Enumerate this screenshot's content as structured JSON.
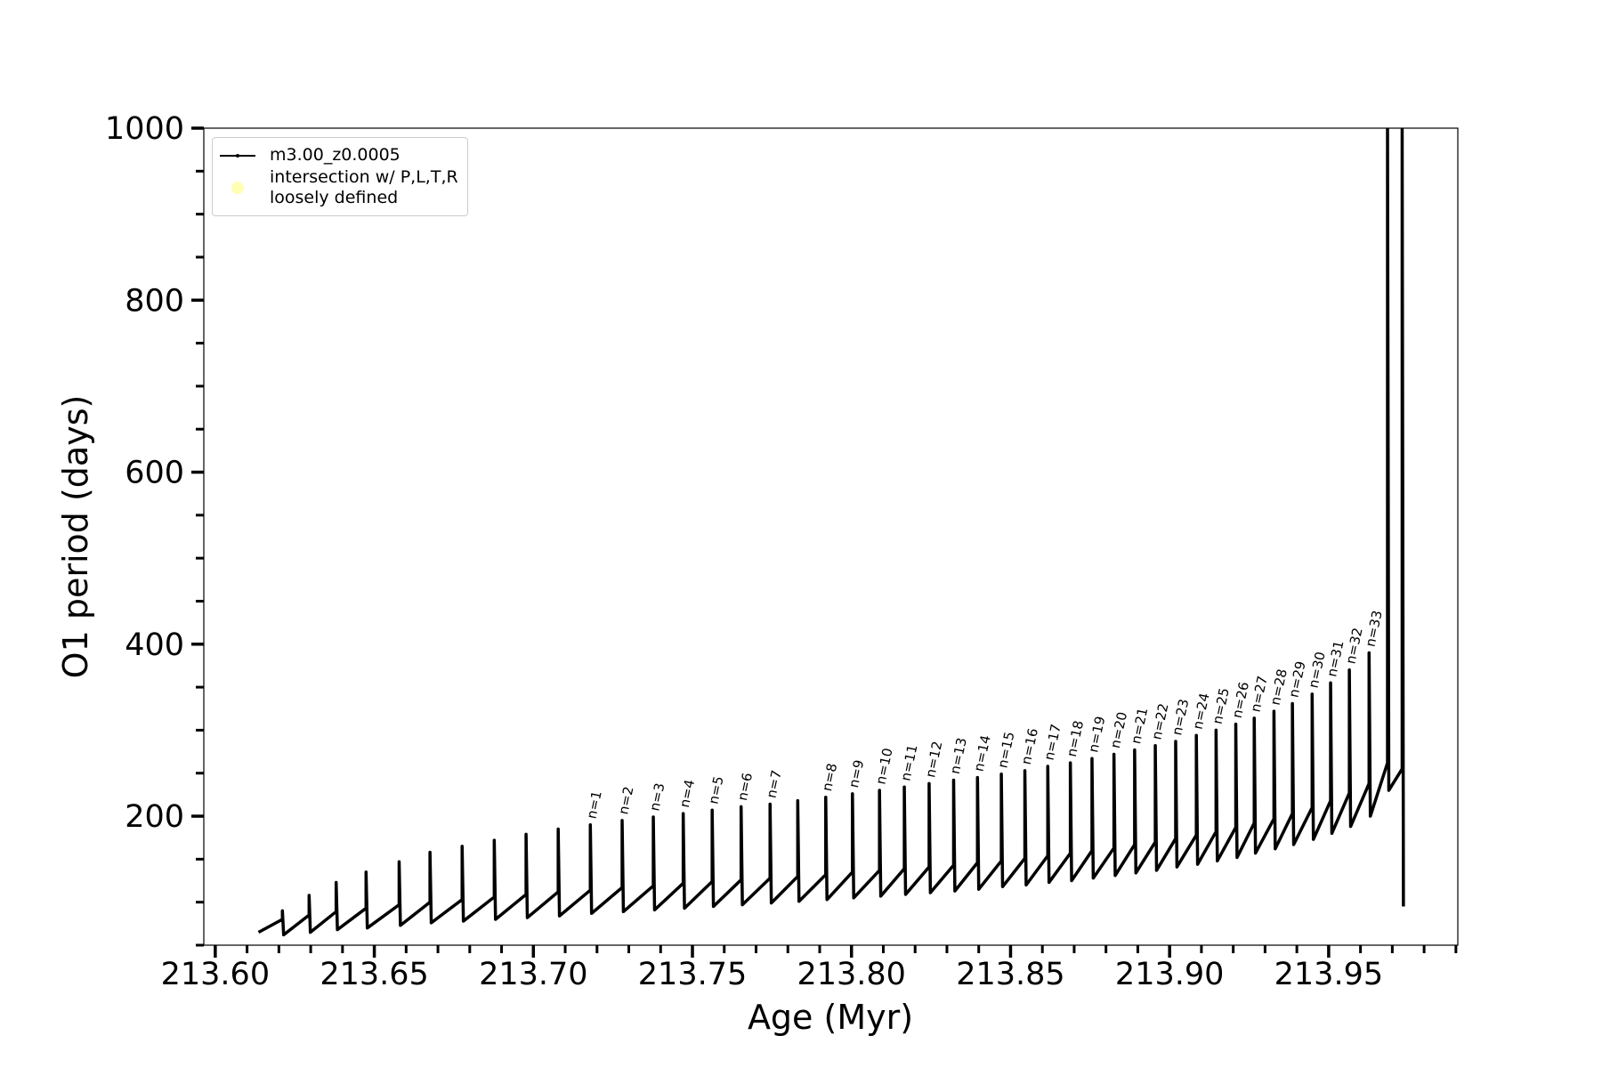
{
  "chart_data": {
    "type": "line",
    "xlabel": "Age (Myr)",
    "ylabel": "O1 period (days)",
    "xlim": [
      213.5964,
      213.9906
    ],
    "ylim": [
      50,
      1000
    ],
    "xticks": [
      {
        "value": 213.6,
        "label": "213.60"
      },
      {
        "value": 213.65,
        "label": "213.65"
      },
      {
        "value": 213.7,
        "label": "213.70"
      },
      {
        "value": 213.75,
        "label": "213.75"
      },
      {
        "value": 213.8,
        "label": "213.80"
      },
      {
        "value": 213.85,
        "label": "213.85"
      },
      {
        "value": 213.9,
        "label": "213.90"
      },
      {
        "value": 213.95,
        "label": "213.95"
      }
    ],
    "xminorticks": [
      213.61,
      213.62,
      213.63,
      213.64,
      213.66,
      213.67,
      213.68,
      213.69,
      213.71,
      213.72,
      213.73,
      213.74,
      213.76,
      213.77,
      213.78,
      213.79,
      213.81,
      213.82,
      213.83,
      213.84,
      213.86,
      213.87,
      213.88,
      213.89,
      213.91,
      213.92,
      213.93,
      213.94,
      213.96,
      213.97,
      213.98,
      213.99
    ],
    "yticks": [
      200,
      400,
      600,
      800,
      1000
    ],
    "yminorticks": [
      50,
      100,
      150,
      250,
      300,
      350,
      450,
      500,
      550,
      650,
      700,
      750,
      850,
      900,
      950
    ],
    "legend": "upper left",
    "series": [
      {
        "name": "m3.00_z0.0005",
        "color": "#000000",
        "x": [
          213.6136,
          213.6211,
          213.6211,
          213.6215,
          213.6295,
          213.6295,
          213.6299,
          213.638,
          213.638,
          213.6384,
          213.6474,
          213.6474,
          213.6478,
          213.6578,
          213.6578,
          213.6582,
          213.6675,
          213.6675,
          213.6679,
          213.6776,
          213.6776,
          213.678,
          213.6877,
          213.6877,
          213.6881,
          213.6977,
          213.6977,
          213.6981,
          213.7078,
          213.7078,
          213.7082,
          213.7179,
          213.7179,
          213.7183,
          213.7279,
          213.7279,
          213.7283,
          213.7377,
          213.7377,
          213.7381,
          213.7471,
          213.7471,
          213.7475,
          213.7562,
          213.7562,
          213.7566,
          213.7653,
          213.7653,
          213.7657,
          213.7744,
          213.7744,
          213.7748,
          213.7831,
          213.7831,
          213.7835,
          213.7919,
          213.7919,
          213.7923,
          213.8003,
          213.8003,
          213.8007,
          213.8088,
          213.8088,
          213.8092,
          213.8166,
          213.8166,
          213.817,
          213.8244,
          213.8244,
          213.8248,
          213.8321,
          213.8321,
          213.8325,
          213.8396,
          213.8396,
          213.84,
          213.8471,
          213.8471,
          213.8475,
          213.8545,
          213.8545,
          213.8549,
          213.8617,
          213.8617,
          213.8621,
          213.8688,
          213.8688,
          213.8692,
          213.8756,
          213.8756,
          213.876,
          213.8825,
          213.8825,
          213.8829,
          213.889,
          213.889,
          213.8894,
          213.8955,
          213.8955,
          213.8959,
          213.9019,
          213.9019,
          213.9023,
          213.9084,
          213.9084,
          213.9088,
          213.9146,
          213.9146,
          213.915,
          213.9208,
          213.9208,
          213.9212,
          213.9266,
          213.9266,
          213.927,
          213.9328,
          213.9328,
          213.9332,
          213.9386,
          213.9386,
          213.939,
          213.9448,
          213.9448,
          213.9452,
          213.9506,
          213.9506,
          213.951,
          213.9565,
          213.9565,
          213.9569,
          213.9627,
          213.9627,
          213.9631,
          213.9685,
          213.9685,
          213.9689,
          213.9731,
          213.9731,
          213.9735
        ],
        "values": [
          65,
          80,
          90,
          62,
          85,
          108,
          65,
          89,
          123,
          68,
          93,
          135,
          70,
          97,
          147,
          73,
          100,
          158,
          76,
          103,
          165,
          78,
          106,
          172,
          80,
          109,
          179,
          82,
          112,
          185,
          84,
          114,
          190,
          87,
          117,
          195,
          89,
          119,
          199,
          91,
          122,
          203,
          93,
          124,
          207,
          95,
          126,
          211,
          97,
          128,
          214,
          99,
          130,
          218,
          101,
          132,
          222,
          103,
          135,
          226,
          105,
          137,
          230,
          107,
          139,
          234,
          109,
          141,
          238,
          111,
          143,
          242,
          113,
          146,
          245,
          115,
          148,
          249,
          118,
          151,
          253,
          120,
          154,
          258,
          123,
          157,
          262,
          125,
          160,
          267,
          128,
          163,
          272,
          131,
          167,
          277,
          134,
          170,
          282,
          137,
          174,
          287,
          141,
          178,
          294,
          144,
          182,
          300,
          148,
          187,
          307,
          152,
          192,
          314,
          157,
          197,
          322,
          162,
          203,
          331,
          167,
          210,
          342,
          173,
          218,
          355,
          180,
          227,
          370,
          188,
          238,
          390,
          200,
          262,
          1000,
          230,
          255,
          1000,
          95
        ]
      },
      {
        "name": "intersection w/ P,L,T,R\nloosely defined",
        "color": "#ffffb3",
        "x": [],
        "values": []
      }
    ],
    "annotations": [
      {
        "text": "n=1",
        "x": 213.7179,
        "y": 190
      },
      {
        "text": "n=2",
        "x": 213.7279,
        "y": 195
      },
      {
        "text": "n=3",
        "x": 213.7377,
        "y": 199
      },
      {
        "text": "n=4",
        "x": 213.7471,
        "y": 203
      },
      {
        "text": "n=5",
        "x": 213.7562,
        "y": 207
      },
      {
        "text": "n=6",
        "x": 213.7653,
        "y": 211
      },
      {
        "text": "n=7",
        "x": 213.7744,
        "y": 214
      },
      {
        "text": "n=8",
        "x": 213.7919,
        "y": 222
      },
      {
        "text": "n=9",
        "x": 213.8003,
        "y": 226
      },
      {
        "text": "n=10",
        "x": 213.8088,
        "y": 230
      },
      {
        "text": "n=11",
        "x": 213.8166,
        "y": 234
      },
      {
        "text": "n=12",
        "x": 213.8244,
        "y": 238
      },
      {
        "text": "n=13",
        "x": 213.8321,
        "y": 242
      },
      {
        "text": "n=14",
        "x": 213.8396,
        "y": 245
      },
      {
        "text": "n=15",
        "x": 213.8471,
        "y": 249
      },
      {
        "text": "n=16",
        "x": 213.8545,
        "y": 253
      },
      {
        "text": "n=17",
        "x": 213.8617,
        "y": 258
      },
      {
        "text": "n=18",
        "x": 213.8688,
        "y": 262
      },
      {
        "text": "n=19",
        "x": 213.8756,
        "y": 267
      },
      {
        "text": "n=20",
        "x": 213.8825,
        "y": 272
      },
      {
        "text": "n=21",
        "x": 213.889,
        "y": 277
      },
      {
        "text": "n=22",
        "x": 213.8955,
        "y": 282
      },
      {
        "text": "n=23",
        "x": 213.9019,
        "y": 287
      },
      {
        "text": "n=24",
        "x": 213.9084,
        "y": 294
      },
      {
        "text": "n=25",
        "x": 213.9146,
        "y": 300
      },
      {
        "text": "n=26",
        "x": 213.9208,
        "y": 307
      },
      {
        "text": "n=27",
        "x": 213.9266,
        "y": 314
      },
      {
        "text": "n=28",
        "x": 213.9328,
        "y": 322
      },
      {
        "text": "n=29",
        "x": 213.9386,
        "y": 331
      },
      {
        "text": "n=30",
        "x": 213.9448,
        "y": 342
      },
      {
        "text": "n=31",
        "x": 213.9506,
        "y": 355
      },
      {
        "text": "n=32",
        "x": 213.9565,
        "y": 370
      },
      {
        "text": "n=33",
        "x": 213.9627,
        "y": 390
      }
    ]
  }
}
